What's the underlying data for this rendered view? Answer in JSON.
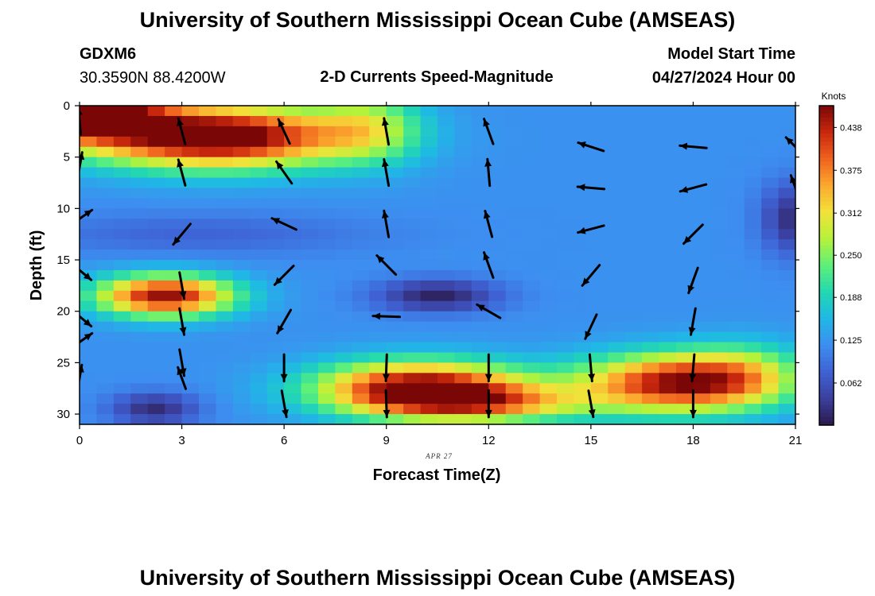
{
  "header": {
    "title_top": "University of Southern Mississippi Ocean Cube (AMSEAS)",
    "station": "GDXM6",
    "coords": "30.3590N  88.4200W",
    "subtitle": "2-D Currents Speed-Magnitude",
    "start_label": "Model Start Time",
    "start_value": "04/27/2024 Hour 00",
    "title_bottom": "University of Southern Mississippi Ocean Cube (AMSEAS)"
  },
  "chart_data": {
    "type": "heatmap",
    "title": "2-D Currents Speed-Magnitude",
    "xlabel": "Forecast Time(Z)",
    "ylabel": "Depth (ft)",
    "date_label": "APR 27",
    "xlim": [
      0,
      21
    ],
    "ylim": [
      0,
      31
    ],
    "x_ticks": [
      0,
      3,
      6,
      9,
      12,
      15,
      18,
      21
    ],
    "y_ticks": [
      0,
      5,
      10,
      15,
      20,
      25,
      30
    ],
    "colorbar": {
      "label": "Knots",
      "min": 0,
      "max": 0.47,
      "ticks": [
        "0.062",
        "0.125",
        "0.188",
        "0.250",
        "0.312",
        "0.375",
        "0.438"
      ],
      "colors": [
        "#2a1a4a",
        "#3b3f9e",
        "#3f62d4",
        "#3d8ef0",
        "#1fb8e6",
        "#22d8b0",
        "#5ef07a",
        "#b5f23a",
        "#f2e23a",
        "#fba92e",
        "#f0621e",
        "#c8280d",
        "#7a0606"
      ]
    },
    "field_blobs": [
      {
        "t": 0,
        "d": 0,
        "amp": 0.44,
        "st": 2.2,
        "sd": 3.0
      },
      {
        "t": 4,
        "d": 3,
        "amp": 0.4,
        "st": 3.8,
        "sd": 3.0
      },
      {
        "t": 2.5,
        "d": 18.5,
        "amp": 0.34,
        "st": 2.0,
        "sd": 2.0
      },
      {
        "t": 10,
        "d": 27.5,
        "amp": 0.36,
        "st": 3.0,
        "sd": 2.6
      },
      {
        "t": 17.5,
        "d": 27,
        "amp": 0.33,
        "st": 2.8,
        "sd": 2.8
      },
      {
        "t": 12,
        "d": 29,
        "amp": 0.18,
        "st": 3.0,
        "sd": 1.8
      },
      {
        "t": 8.5,
        "d": 2,
        "amp": 0.12,
        "st": 1.5,
        "sd": 3.5
      },
      {
        "t": 19.5,
        "d": 26,
        "amp": 0.1,
        "st": 1.8,
        "sd": 3.0
      }
    ],
    "field_cold": [
      {
        "t": 10.5,
        "d": 18.5,
        "amp": 0.11,
        "st": 1.8,
        "sd": 1.6
      },
      {
        "t": 2.2,
        "d": 29.5,
        "amp": 0.1,
        "st": 1.3,
        "sd": 1.6
      },
      {
        "t": 21,
        "d": 11,
        "amp": 0.1,
        "st": 1.0,
        "sd": 3.5
      },
      {
        "t": 3.5,
        "d": 12.5,
        "amp": 0.04,
        "st": 5.0,
        "sd": 2.0
      }
    ],
    "base_speed": 0.12,
    "vectors": [
      {
        "t": 0,
        "d": 1.5,
        "ang": 95,
        "len": 0.07
      },
      {
        "t": 0,
        "d": 6,
        "ang": 80,
        "len": 0.08
      },
      {
        "t": 0,
        "d": 11,
        "ang": 35,
        "len": 0.08
      },
      {
        "t": 0,
        "d": 16,
        "ang": -40,
        "len": 0.08
      },
      {
        "t": 0,
        "d": 20.5,
        "ang": -40,
        "len": 0.08
      },
      {
        "t": 0,
        "d": 23,
        "ang": 35,
        "len": 0.08
      },
      {
        "t": 0,
        "d": 26.5,
        "ang": 80,
        "len": 0.07
      },
      {
        "t": 3,
        "d": 2.5,
        "ang": 105,
        "len": 0.07
      },
      {
        "t": 3,
        "d": 6.5,
        "ang": 105,
        "len": 0.07
      },
      {
        "t": 3,
        "d": 12.5,
        "ang": -130,
        "len": 0.07
      },
      {
        "t": 3,
        "d": 17.5,
        "ang": -80,
        "len": 0.07
      },
      {
        "t": 3,
        "d": 21,
        "ang": -80,
        "len": 0.07
      },
      {
        "t": 3,
        "d": 25,
        "ang": -80,
        "len": 0.07
      },
      {
        "t": 3,
        "d": 26.5,
        "ang": 110,
        "len": 0.06
      },
      {
        "t": 6,
        "d": 2.5,
        "ang": 115,
        "len": 0.07
      },
      {
        "t": 6,
        "d": 6.5,
        "ang": 125,
        "len": 0.07
      },
      {
        "t": 6,
        "d": 11.5,
        "ang": 155,
        "len": 0.07
      },
      {
        "t": 6,
        "d": 16.5,
        "ang": -135,
        "len": 0.07
      },
      {
        "t": 6,
        "d": 21,
        "ang": -120,
        "len": 0.07
      },
      {
        "t": 6,
        "d": 25.5,
        "ang": -90,
        "len": 0.07
      },
      {
        "t": 6,
        "d": 29,
        "ang": -80,
        "len": 0.07
      },
      {
        "t": 9,
        "d": 2.5,
        "ang": 100,
        "len": 0.07
      },
      {
        "t": 9,
        "d": 6.5,
        "ang": 100,
        "len": 0.07
      },
      {
        "t": 9,
        "d": 11.5,
        "ang": 100,
        "len": 0.07
      },
      {
        "t": 9,
        "d": 15.5,
        "ang": 135,
        "len": 0.07
      },
      {
        "t": 9,
        "d": 20.5,
        "ang": 178,
        "len": 0.07
      },
      {
        "t": 9,
        "d": 25.5,
        "ang": -92,
        "len": 0.07
      },
      {
        "t": 9,
        "d": 29,
        "ang": -88,
        "len": 0.07
      },
      {
        "t": 12,
        "d": 2.5,
        "ang": 110,
        "len": 0.07
      },
      {
        "t": 12,
        "d": 6.5,
        "ang": 95,
        "len": 0.07
      },
      {
        "t": 12,
        "d": 11.5,
        "ang": 105,
        "len": 0.07
      },
      {
        "t": 12,
        "d": 15.5,
        "ang": 110,
        "len": 0.07
      },
      {
        "t": 12,
        "d": 20,
        "ang": 150,
        "len": 0.07
      },
      {
        "t": 12,
        "d": 25.5,
        "ang": -90,
        "len": 0.07
      },
      {
        "t": 12,
        "d": 29,
        "ang": -90,
        "len": 0.07
      },
      {
        "t": 15,
        "d": 4,
        "ang": 162,
        "len": 0.07
      },
      {
        "t": 15,
        "d": 8,
        "ang": 175,
        "len": 0.07
      },
      {
        "t": 15,
        "d": 12,
        "ang": -165,
        "len": 0.07
      },
      {
        "t": 15,
        "d": 16.5,
        "ang": -130,
        "len": 0.07
      },
      {
        "t": 15,
        "d": 21.5,
        "ang": -115,
        "len": 0.07
      },
      {
        "t": 15,
        "d": 25.5,
        "ang": -85,
        "len": 0.07
      },
      {
        "t": 15,
        "d": 29,
        "ang": -80,
        "len": 0.07
      },
      {
        "t": 18,
        "d": 4,
        "ang": 175,
        "len": 0.07
      },
      {
        "t": 18,
        "d": 8,
        "ang": -165,
        "len": 0.07
      },
      {
        "t": 18,
        "d": 12.5,
        "ang": -135,
        "len": 0.07
      },
      {
        "t": 18,
        "d": 17,
        "ang": -110,
        "len": 0.07
      },
      {
        "t": 18,
        "d": 21,
        "ang": -100,
        "len": 0.07
      },
      {
        "t": 18,
        "d": 25.5,
        "ang": -95,
        "len": 0.07
      },
      {
        "t": 18,
        "d": 29,
        "ang": -90,
        "len": 0.07
      },
      {
        "t": 21,
        "d": 4,
        "ang": 135,
        "len": 0.07
      },
      {
        "t": 21,
        "d": 8,
        "ang": 110,
        "len": 0.07
      }
    ]
  }
}
